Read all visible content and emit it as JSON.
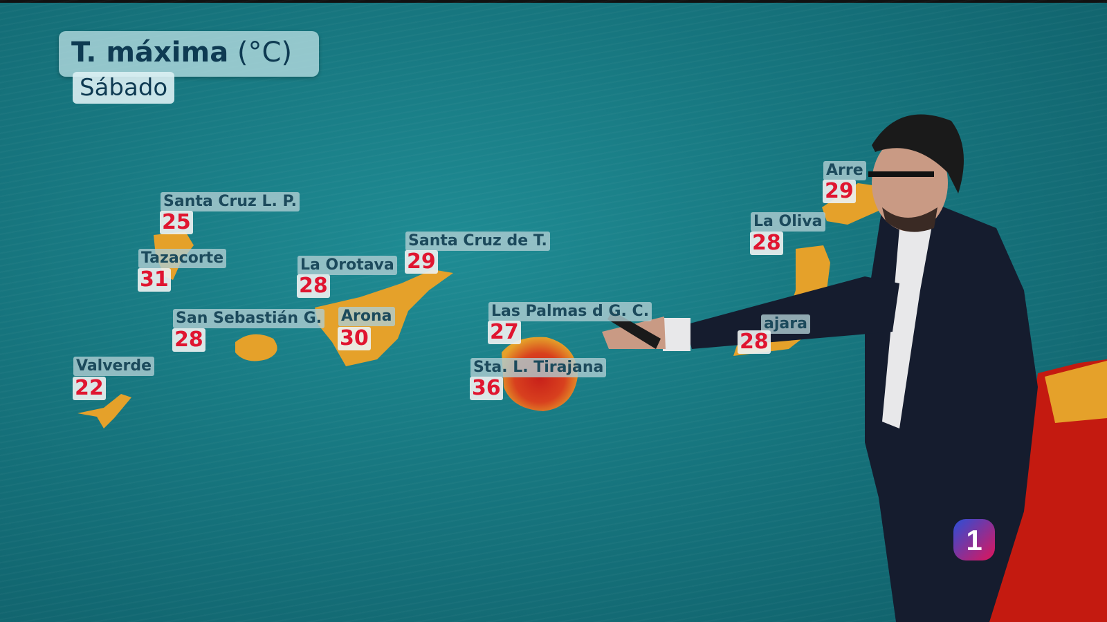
{
  "header": {
    "title_bold": "T. máxima",
    "title_unit": "(°C)",
    "day": "Sábado"
  },
  "colors": {
    "sea": "#17767f",
    "land_low": "#e5a12a",
    "land_hot": "#c8201a",
    "value_text": "#e01530",
    "label_text": "#1c4a5c"
  },
  "locations": [
    {
      "name": "Santa Cruz  L. P.",
      "temp": "25"
    },
    {
      "name": "Tazacorte",
      "temp": "31"
    },
    {
      "name": "La Orotava",
      "temp": "28"
    },
    {
      "name": "Santa Cruz de T.",
      "temp": "29"
    },
    {
      "name": "San Sebastián G.",
      "temp": "28"
    },
    {
      "name": "Arona",
      "temp": "30"
    },
    {
      "name": "Valverde",
      "temp": "22"
    },
    {
      "name": "Las Palmas d   G. C.",
      "temp": "27"
    },
    {
      "name": "Sta. L. Tirajana",
      "temp": "36"
    },
    {
      "name": "La Oliva",
      "temp": "28"
    },
    {
      "name": "Arre",
      "temp": "29"
    },
    {
      "name": "ajara",
      "temp": "28"
    }
  ],
  "logo": {
    "text": "1"
  }
}
